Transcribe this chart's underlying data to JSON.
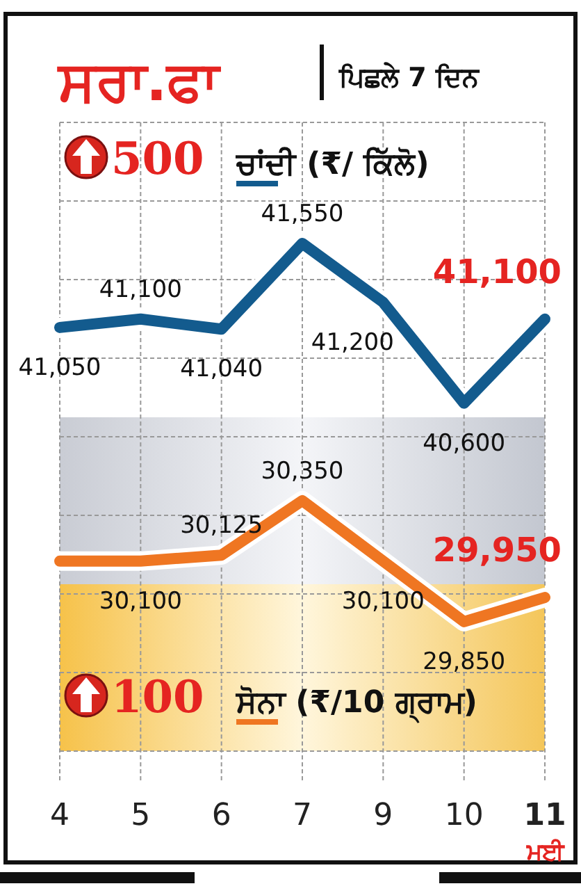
{
  "chart_data": {
    "type": "line",
    "title": "ਸਰਾ.ਫਾ",
    "subtitle": "ਪਿਛਲੇ 7 ਦਿਨ",
    "xlabel": "ਮਈ",
    "categories": [
      "4",
      "5",
      "6",
      "7",
      "9",
      "10",
      "11"
    ],
    "series": [
      {
        "name": "ਚਾਂਦੀ (₹/ ਕਿੱਲੋ)",
        "color": "#135b8e",
        "values": [
          41050,
          41100,
          41040,
          41550,
          41200,
          40600,
          41100
        ],
        "value_labels": [
          "41,050",
          "41,100",
          "41,040",
          "41,550",
          "41,200",
          "40,600",
          "41,100"
        ]
      },
      {
        "name": "ਸੋਨਾ (₹/10 ਗ੍ਰਾਮ)",
        "color": "#ef7622",
        "axis": "y2",
        "values": [
          30100,
          30100,
          30125,
          30350,
          30100,
          29850,
          29950
        ],
        "value_labels": [
          null,
          "30,100",
          "30,125",
          "30,350",
          "30,100",
          "29,850",
          "29,950"
        ]
      }
    ],
    "annotations": [
      "500",
      "100"
    ],
    "ylim": [
      38530,
      42270
    ],
    "y2lim": [
      29315,
      31913
    ],
    "tick_labels": "x",
    "grid": true,
    "legend": "right"
  }
}
